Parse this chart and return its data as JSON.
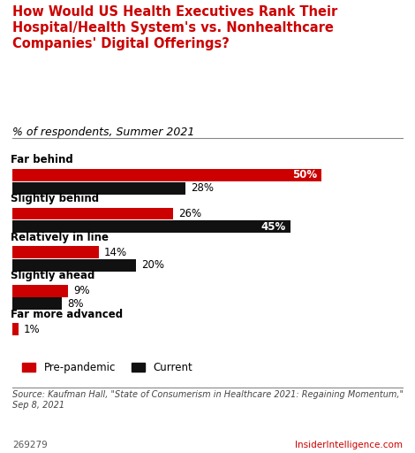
{
  "title_line1": "How Would US Health Executives Rank Their",
  "title_line2": "Hospital/Health System's vs. Nonhealthcare",
  "title_line3": "Companies' Digital Offerings?",
  "subtitle": "% of respondents, Summer 2021",
  "categories": [
    "Far behind",
    "Slightly behind",
    "Relatively in line",
    "Slightly ahead",
    "Far more advanced"
  ],
  "prepandemic": [
    50,
    26,
    14,
    9,
    1
  ],
  "current": [
    28,
    45,
    20,
    8,
    0
  ],
  "bar_color_pre": "#cc0000",
  "bar_color_cur": "#111111",
  "source": "Source: Kaufman Hall, \"State of Consumerism in Healthcare 2021: Regaining Momentum,\"\nSep 8, 2021",
  "chart_id": "269279",
  "brand": "InsiderIntelligence.com",
  "xlim": [
    0,
    55
  ],
  "bg_color": "#ffffff",
  "legend_pre": "Pre-pandemic",
  "legend_cur": "Current"
}
